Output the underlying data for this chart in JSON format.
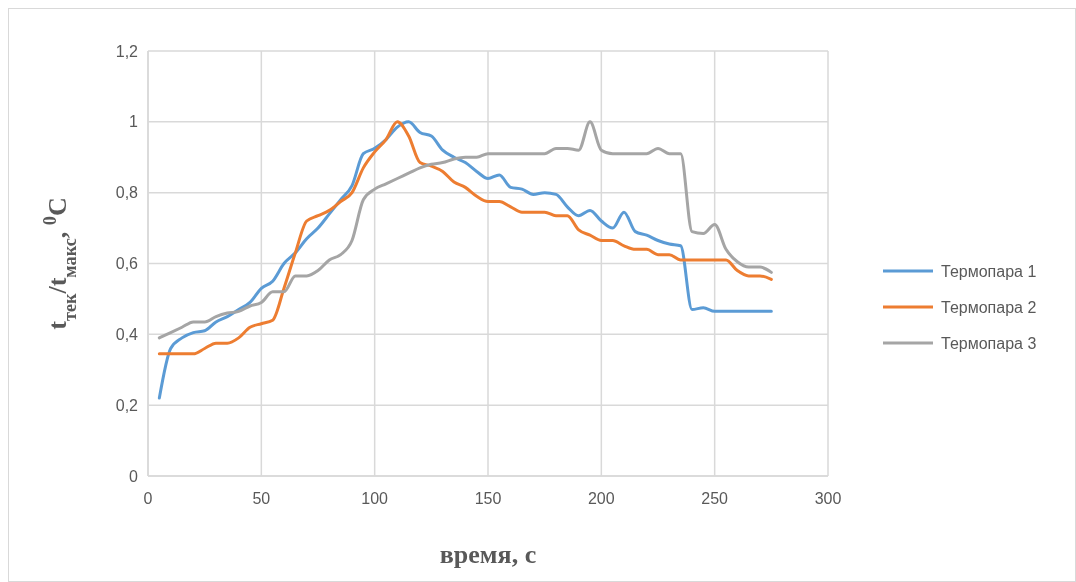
{
  "chart_data": {
    "type": "line",
    "xlabel": "время, с",
    "ylabel": "t$_{тек}$/t$_{макс}$, $^{0}$C",
    "x": [
      5,
      10,
      15,
      20,
      25,
      30,
      35,
      40,
      45,
      50,
      55,
      60,
      65,
      70,
      75,
      80,
      85,
      90,
      95,
      100,
      105,
      110,
      115,
      120,
      125,
      130,
      135,
      140,
      145,
      150,
      155,
      160,
      165,
      170,
      175,
      180,
      185,
      190,
      195,
      200,
      205,
      210,
      215,
      220,
      225,
      230,
      235,
      240,
      245,
      250,
      255,
      260,
      265,
      270,
      275
    ],
    "series": [
      {
        "name": "Термопара 1",
        "color": "#5b9bd5",
        "values": [
          0.22,
          0.36,
          0.39,
          0.405,
          0.41,
          0.435,
          0.45,
          0.47,
          0.49,
          0.53,
          0.55,
          0.6,
          0.63,
          0.67,
          0.7,
          0.74,
          0.78,
          0.82,
          0.91,
          0.925,
          0.95,
          0.985,
          1.0,
          0.97,
          0.96,
          0.92,
          0.9,
          0.885,
          0.86,
          0.84,
          0.85,
          0.815,
          0.81,
          0.795,
          0.8,
          0.795,
          0.76,
          0.735,
          0.75,
          0.72,
          0.7,
          0.745,
          0.69,
          0.68,
          0.665,
          0.655,
          0.65,
          0.47,
          0.475,
          0.465,
          0.465,
          0.465,
          0.465,
          0.465,
          0.465
        ]
      },
      {
        "name": "Термопара 2",
        "color": "#ed7d31",
        "values": [
          0.345,
          0.345,
          0.345,
          0.345,
          0.36,
          0.375,
          0.375,
          0.39,
          0.42,
          0.43,
          0.44,
          0.53,
          0.63,
          0.72,
          0.735,
          0.75,
          0.775,
          0.8,
          0.87,
          0.915,
          0.95,
          1.0,
          0.96,
          0.885,
          0.875,
          0.86,
          0.83,
          0.815,
          0.79,
          0.775,
          0.775,
          0.76,
          0.745,
          0.745,
          0.745,
          0.735,
          0.735,
          0.695,
          0.68,
          0.665,
          0.665,
          0.65,
          0.64,
          0.64,
          0.625,
          0.625,
          0.61,
          0.61,
          0.61,
          0.61,
          0.61,
          0.58,
          0.565,
          0.565,
          0.555
        ]
      },
      {
        "name": "Термопара 3",
        "color": "#a5a5a5",
        "values": [
          0.39,
          0.405,
          0.42,
          0.435,
          0.435,
          0.45,
          0.46,
          0.465,
          0.48,
          0.49,
          0.52,
          0.52,
          0.565,
          0.565,
          0.58,
          0.61,
          0.625,
          0.665,
          0.78,
          0.81,
          0.825,
          0.84,
          0.855,
          0.87,
          0.88,
          0.885,
          0.895,
          0.9,
          0.9,
          0.91,
          0.91,
          0.91,
          0.91,
          0.91,
          0.91,
          0.925,
          0.925,
          0.92,
          1.0,
          0.92,
          0.91,
          0.91,
          0.91,
          0.91,
          0.925,
          0.91,
          0.91,
          0.69,
          0.685,
          0.71,
          0.64,
          0.605,
          0.59,
          0.59,
          0.575
        ]
      }
    ],
    "xlim": [
      0,
      300
    ],
    "xticks": [
      0,
      50,
      100,
      150,
      200,
      250,
      300
    ],
    "ylim": [
      0,
      1.2
    ],
    "yticks": [
      0,
      {
        "value": 0.2,
        "label": "0,2"
      },
      {
        "value": 0.4,
        "label": "0,4"
      },
      {
        "value": 0.6,
        "label": "0,6"
      },
      {
        "value": 0.8,
        "label": "0,8"
      },
      1,
      {
        "value": 1.2,
        "label": "1,2"
      }
    ],
    "grid": true,
    "legend": "right",
    "marker": "none",
    "line_style": "solid"
  }
}
